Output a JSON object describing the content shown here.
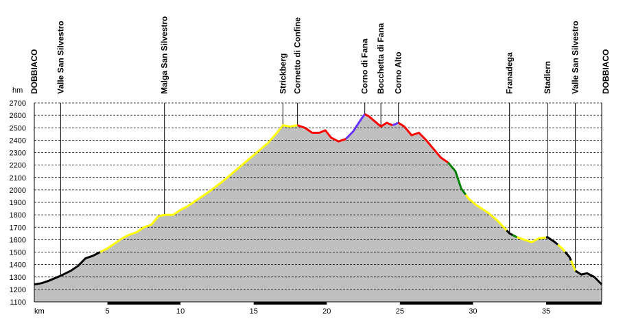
{
  "chart_data": {
    "type": "area",
    "y_unit": "hm",
    "x_unit": "km",
    "xlim": [
      0,
      38.8
    ],
    "ylim": [
      1100,
      2700
    ],
    "y_ticks": [
      1100,
      1200,
      1300,
      1400,
      1500,
      1600,
      1700,
      1800,
      1900,
      2000,
      2100,
      2200,
      2300,
      2400,
      2500,
      2600,
      2700
    ],
    "x_ticks": [
      5,
      10,
      15,
      20,
      25,
      30,
      35
    ],
    "grid": "horizontal-dashed",
    "area_color": "#c0c0c0",
    "waypoints": [
      {
        "name": "DOBBIACO",
        "x": 0
      },
      {
        "name": "Valle San Silvestro",
        "x": 1.8
      },
      {
        "name": "Malga San Silvestro",
        "x": 8.9
      },
      {
        "name": "Strickberg",
        "x": 17.0
      },
      {
        "name": "Cornetto di Confine",
        "x": 18.0
      },
      {
        "name": "Corno di Fana",
        "x": 22.6
      },
      {
        "name": "Bocchetta di Fana",
        "x": 23.7
      },
      {
        "name": "Corno Alto",
        "x": 24.9
      },
      {
        "name": "Franadega",
        "x": 32.5
      },
      {
        "name": "Stadlern",
        "x": 35.1
      },
      {
        "name": "Valle San Silvestro",
        "x": 37.0
      },
      {
        "name": "DOBBIACO",
        "x": 38.8
      }
    ],
    "profile": [
      [
        0,
        1240
      ],
      [
        0.5,
        1250
      ],
      [
        1.0,
        1270
      ],
      [
        1.8,
        1310
      ],
      [
        2.5,
        1350
      ],
      [
        3.0,
        1390
      ],
      [
        3.5,
        1450
      ],
      [
        4.0,
        1470
      ],
      [
        4.5,
        1500
      ],
      [
        5.0,
        1530
      ],
      [
        5.5,
        1570
      ],
      [
        6.0,
        1610
      ],
      [
        6.5,
        1640
      ],
      [
        7.0,
        1660
      ],
      [
        7.5,
        1700
      ],
      [
        8.0,
        1720
      ],
      [
        8.5,
        1790
      ],
      [
        9.0,
        1800
      ],
      [
        9.5,
        1800
      ],
      [
        10.0,
        1840
      ],
      [
        10.5,
        1870
      ],
      [
        11.0,
        1910
      ],
      [
        12.0,
        1990
      ],
      [
        13.0,
        2080
      ],
      [
        14.0,
        2180
      ],
      [
        15.0,
        2280
      ],
      [
        16.0,
        2380
      ],
      [
        16.6,
        2460
      ],
      [
        17.0,
        2520
      ],
      [
        17.5,
        2510
      ],
      [
        18.0,
        2520
      ],
      [
        18.5,
        2500
      ],
      [
        19.0,
        2460
      ],
      [
        19.5,
        2460
      ],
      [
        19.9,
        2480
      ],
      [
        20.3,
        2420
      ],
      [
        20.8,
        2390
      ],
      [
        21.3,
        2410
      ],
      [
        21.8,
        2470
      ],
      [
        22.3,
        2560
      ],
      [
        22.6,
        2610
      ],
      [
        22.9,
        2590
      ],
      [
        23.3,
        2550
      ],
      [
        23.7,
        2510
      ],
      [
        24.1,
        2540
      ],
      [
        24.5,
        2520
      ],
      [
        24.9,
        2540
      ],
      [
        25.3,
        2510
      ],
      [
        25.8,
        2440
      ],
      [
        26.3,
        2460
      ],
      [
        26.8,
        2400
      ],
      [
        27.3,
        2330
      ],
      [
        27.8,
        2260
      ],
      [
        28.3,
        2220
      ],
      [
        28.8,
        2150
      ],
      [
        29.2,
        2010
      ],
      [
        29.7,
        1930
      ],
      [
        30.2,
        1880
      ],
      [
        31.0,
        1820
      ],
      [
        31.7,
        1750
      ],
      [
        32.5,
        1650
      ],
      [
        33.0,
        1620
      ],
      [
        33.5,
        1600
      ],
      [
        34.0,
        1580
      ],
      [
        34.5,
        1610
      ],
      [
        35.1,
        1620
      ],
      [
        35.6,
        1580
      ],
      [
        36.1,
        1530
      ],
      [
        36.6,
        1460
      ],
      [
        37.0,
        1350
      ],
      [
        37.4,
        1320
      ],
      [
        37.8,
        1330
      ],
      [
        38.3,
        1300
      ],
      [
        38.8,
        1240
      ]
    ],
    "trail_segments": [
      {
        "color": "#000000",
        "from": 0,
        "to": 4.5
      },
      {
        "color": "#ffff00",
        "from": 4.5,
        "to": 18.0
      },
      {
        "color": "#ff0000",
        "from": 18.0,
        "to": 21.3
      },
      {
        "color": "#6633ff",
        "from": 21.3,
        "to": 22.6
      },
      {
        "color": "#ff0000",
        "from": 22.6,
        "to": 24.5
      },
      {
        "color": "#6633ff",
        "from": 24.5,
        "to": 24.9
      },
      {
        "color": "#ff0000",
        "from": 24.9,
        "to": 28.3
      },
      {
        "color": "#008000",
        "from": 28.3,
        "to": 29.5
      },
      {
        "color": "#ffff00",
        "from": 29.5,
        "to": 32.3
      },
      {
        "color": "#000000",
        "from": 32.3,
        "to": 32.7
      },
      {
        "color": "#008000",
        "from": 32.7,
        "to": 33.0
      },
      {
        "color": "#ffff00",
        "from": 33.0,
        "to": 35.0
      },
      {
        "color": "#000000",
        "from": 35.0,
        "to": 35.8
      },
      {
        "color": "#ffff00",
        "from": 35.8,
        "to": 36.3
      },
      {
        "color": "#000000",
        "from": 36.3,
        "to": 36.7
      },
      {
        "color": "#ffff00",
        "from": 36.7,
        "to": 37.0
      },
      {
        "color": "#000000",
        "from": 37.0,
        "to": 38.8
      }
    ],
    "x_axis_bands": [
      [
        5,
        10
      ],
      [
        15,
        20
      ],
      [
        25,
        30
      ],
      [
        35,
        38.8
      ]
    ]
  }
}
